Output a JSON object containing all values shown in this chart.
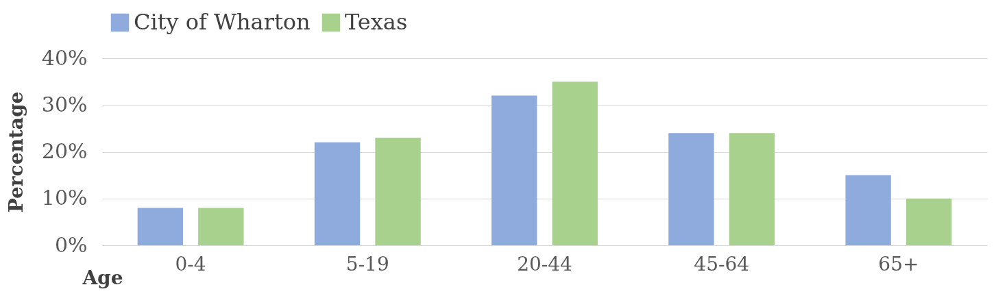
{
  "chart_data": {
    "type": "bar",
    "categories": [
      "0-4",
      "5-19",
      "20-44",
      "45-64",
      "65+"
    ],
    "series": [
      {
        "name": "City of Wharton",
        "color": "#8faadc",
        "values": [
          8,
          22,
          32,
          24,
          15
        ]
      },
      {
        "name": "Texas",
        "color": "#a9d18e",
        "values": [
          8,
          23,
          35,
          24,
          10
        ]
      }
    ],
    "ylabel": "Percentage",
    "xlabel": "Age",
    "ylim": [
      0,
      40
    ],
    "yticks": [
      {
        "value": 0,
        "label": "0%"
      },
      {
        "value": 10,
        "label": "10%"
      },
      {
        "value": 20,
        "label": "20%"
      },
      {
        "value": 30,
        "label": "30%"
      },
      {
        "value": 40,
        "label": "40%"
      }
    ],
    "grid": "y",
    "legend": "top left"
  }
}
